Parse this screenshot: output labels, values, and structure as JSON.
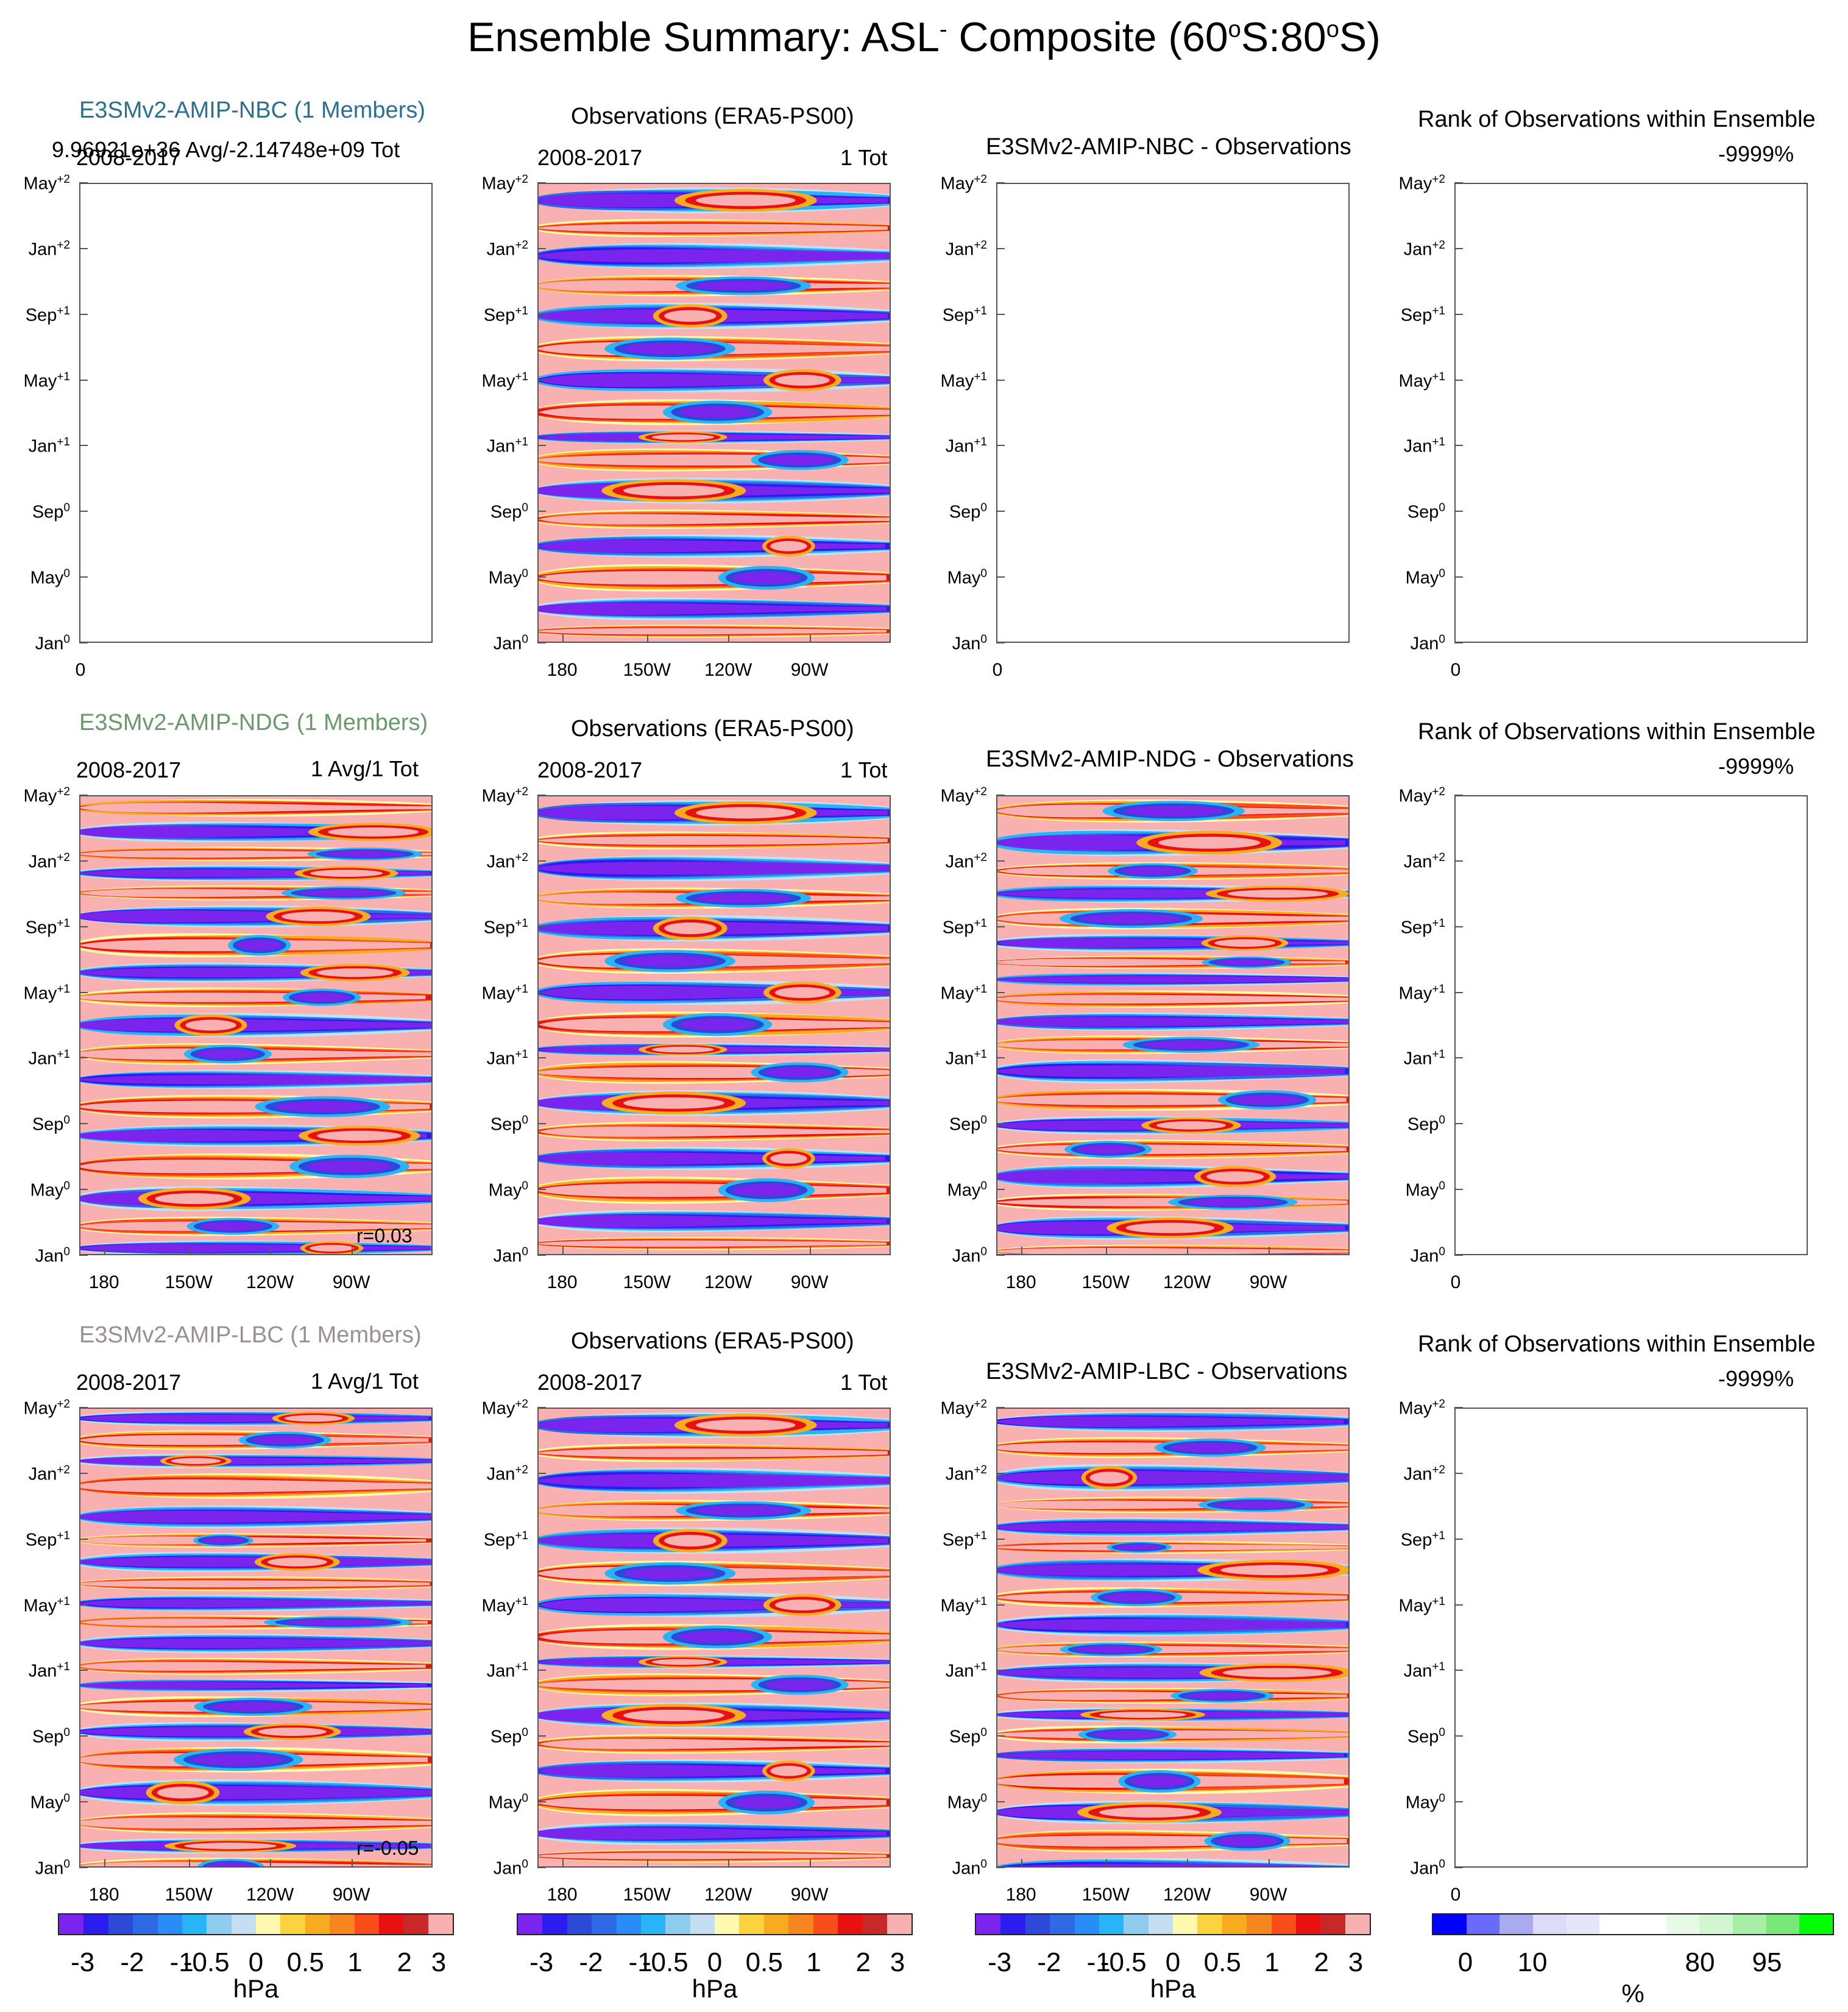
{
  "title": "Ensemble Summary: ASL",
  "title_sup": "-",
  "title_rest": " Composite (60",
  "title_deg1": "o",
  "title_mid": "S:80",
  "title_deg2": "o",
  "title_end": "S)",
  "y_ticks": [
    {
      "m": "Jan",
      "s": "0"
    },
    {
      "m": "May",
      "s": "0"
    },
    {
      "m": "Sep",
      "s": "0"
    },
    {
      "m": "Jan",
      "s": "+1"
    },
    {
      "m": "May",
      "s": "+1"
    },
    {
      "m": "Sep",
      "s": "+1"
    },
    {
      "m": "Jan",
      "s": "+2"
    },
    {
      "m": "May",
      "s": "+2"
    }
  ],
  "x_ticks": [
    "180",
    "150W",
    "120W",
    "90W"
  ],
  "rows": [
    {
      "model_title": "E3SMv2-AMIP-NBC (1 Members)",
      "model_color": "#2a7090",
      "model_label_left": "2008-2017",
      "model_label_right": "9.96921e+36 Avg/-2.14748e+09 Tot",
      "model_empty_axis": "0",
      "obs_title": "Observations (ERA5-PS00)",
      "obs_left": "2008-2017",
      "obs_right": "1 Tot",
      "diff_title": "E3SMv2-AMIP-NBC - Observations",
      "diff_empty_axis": "0",
      "rank_title": "Rank of Observations within Ensemble",
      "rank_value": "-9999%",
      "rank_axis": "0",
      "corr": ""
    },
    {
      "model_title": "E3SMv2-AMIP-NDG (1 Members)",
      "model_color": "#6a9a6a",
      "model_label_left": "2008-2017",
      "model_label_right": "1 Avg/1 Tot",
      "model_empty_axis": "",
      "obs_title": "Observations (ERA5-PS00)",
      "obs_left": "2008-2017",
      "obs_right": "1 Tot",
      "diff_title": "E3SMv2-AMIP-NDG - Observations",
      "diff_empty_axis": "",
      "rank_title": "Rank of Observations within Ensemble",
      "rank_value": "-9999%",
      "rank_axis": "0",
      "corr": "r=0.03"
    },
    {
      "model_title": "E3SMv2-AMIP-LBC (1 Members)",
      "model_color": "#999090",
      "model_label_left": "2008-2017",
      "model_label_right": "1 Avg/1 Tot",
      "model_empty_axis": "",
      "obs_title": "Observations (ERA5-PS00)",
      "obs_left": "2008-2017",
      "obs_right": "1 Tot",
      "diff_title": "E3SMv2-AMIP-LBC - Observations",
      "diff_empty_axis": "",
      "rank_title": "Rank of Observations within Ensemble",
      "rank_value": "-9999%",
      "rank_axis": "0",
      "corr": "r=-0.05"
    }
  ],
  "colorbar_hpa": {
    "colors": [
      "#7b24ee",
      "#2d1cf0",
      "#2c49d8",
      "#2f6ae6",
      "#2a8cf6",
      "#2ab4f8",
      "#8fcdf0",
      "#c5dff2",
      "#fffab0",
      "#fad33e",
      "#f7ab1e",
      "#f88620",
      "#f94d1a",
      "#e81010",
      "#c82828",
      "#f8b0b0"
    ],
    "labels": [
      "-3",
      "-2",
      "-1",
      "-0.5",
      "0",
      "0.5",
      "1",
      "2",
      "3"
    ],
    "unit": "hPa"
  },
  "colorbar_rank": {
    "colors": [
      "#0000ff",
      "#6a6aff",
      "#aaaaee",
      "#dcdcf8",
      "#e6e6fa",
      "#ffffff",
      "#ffffff",
      "#e6fae6",
      "#d2f5d2",
      "#a8eea8",
      "#78e878",
      "#00ff00"
    ],
    "labels": [
      "0",
      "10",
      "80",
      "95"
    ],
    "unit": "%"
  },
  "chart_data": [
    {
      "type": "heatmap",
      "title": "Ensemble Summary: ASL- Composite (60oS:80oS)",
      "description_of_axes": "x: longitude (180 to ~65W), y: composite month from Jan0 to May+2",
      "xlabel": "",
      "ylabel": "",
      "x_ticks": [
        "180",
        "150W",
        "120W",
        "90W"
      ],
      "y_ticks": [
        "Jan0",
        "May0",
        "Sep0",
        "Jan+1",
        "May+1",
        "Sep+1",
        "Jan+2",
        "May+2"
      ],
      "levels_hPa": [
        -3,
        -2,
        -1,
        -0.5,
        0,
        0.5,
        1,
        2,
        3
      ],
      "panels": [
        {
          "name": "E3SMv2-AMIP-NBC (1 Members)",
          "state": "empty"
        },
        {
          "name": "Observations (ERA5-PS00)",
          "state": "filled"
        },
        {
          "name": "E3SMv2-AMIP-NBC - Observations",
          "state": "empty"
        },
        {
          "name": "Rank of Observations within Ensemble",
          "state": "empty",
          "value": "-9999%"
        },
        {
          "name": "E3SMv2-AMIP-NDG (1 Members)",
          "state": "filled",
          "r": 0.03
        },
        {
          "name": "Observations (ERA5-PS00)",
          "state": "filled"
        },
        {
          "name": "E3SMv2-AMIP-NDG - Observations",
          "state": "filled"
        },
        {
          "name": "Rank of Observations within Ensemble",
          "state": "empty",
          "value": "-9999%"
        },
        {
          "name": "E3SMv2-AMIP-LBC (1 Members)",
          "state": "filled",
          "r": -0.05
        },
        {
          "name": "Observations (ERA5-PS00)",
          "state": "filled"
        },
        {
          "name": "E3SMv2-AMIP-LBC - Observations",
          "state": "filled"
        },
        {
          "name": "Rank of Observations within Ensemble",
          "state": "empty",
          "value": "-9999%"
        }
      ]
    }
  ]
}
